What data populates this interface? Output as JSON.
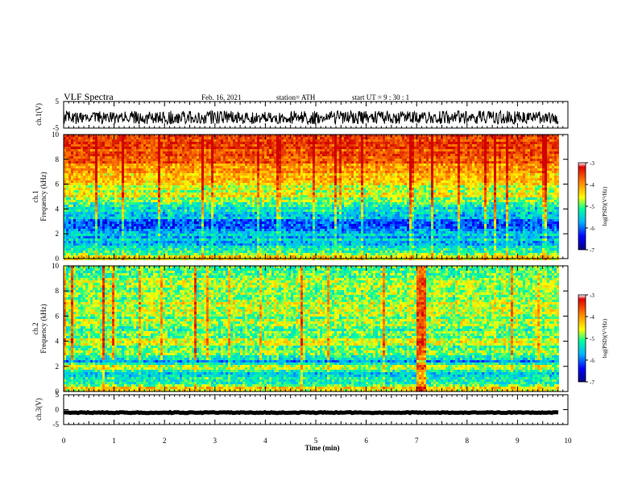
{
  "header": {
    "title": "VLF Spectra",
    "date": "Feb. 16, 2021",
    "station": "station= ATH",
    "start": "start  UT =   9 : 30 : 1"
  },
  "chart_data": [
    {
      "type": "line",
      "panel": "ch1_waveform",
      "ylabel": "ch.1(V)",
      "ylim": [
        -5,
        5
      ],
      "yticks": [
        "5",
        "-5"
      ],
      "description_values": {
        "baseline_mean": -1.0,
        "min": -3.5,
        "max": 3.5
      }
    },
    {
      "type": "heatmap",
      "panel": "ch1_spectrogram",
      "ylabel_lines": [
        "ch.1",
        "Frequency (kHz)"
      ],
      "ylim": [
        0,
        10
      ],
      "yticks": [
        "0",
        "2",
        "4",
        "6",
        "8",
        "10"
      ],
      "xlim": [
        0,
        10
      ],
      "profile_freq_khz": [
        0,
        0.5,
        1,
        1.5,
        2,
        2.5,
        3,
        3.5,
        4,
        4.5,
        5,
        6,
        7,
        8,
        9,
        10
      ],
      "profile_logpsd": [
        -4.2,
        -4.8,
        -5.5,
        -5.6,
        -5.7,
        -6.1,
        -6.0,
        -5.6,
        -5.3,
        -5.0,
        -4.7,
        -4.5,
        -4.1,
        -3.7,
        -3.5,
        -3.4
      ],
      "colorbar": {
        "label": "log(PSD)(V²/Hz)",
        "ticks": [
          "-3",
          "-4",
          "-5",
          "-6",
          "-7"
        ],
        "range": [
          -7,
          -3
        ]
      }
    },
    {
      "type": "heatmap",
      "panel": "ch2_spectrogram",
      "ylabel_lines": [
        "ch.2",
        "Frequency (kHz)"
      ],
      "ylim": [
        0,
        10
      ],
      "yticks": [
        "0",
        "2",
        "4",
        "6",
        "8",
        "10"
      ],
      "xlim": [
        0,
        10
      ],
      "profile_freq_khz": [
        0,
        0.5,
        1,
        1.5,
        2,
        2.5,
        3,
        4,
        5,
        6,
        7,
        8,
        9,
        10
      ],
      "profile_logpsd": [
        -4.3,
        -4.6,
        -5.4,
        -5.5,
        -4.6,
        -5.9,
        -5.0,
        -4.8,
        -4.9,
        -4.8,
        -4.8,
        -4.9,
        -4.9,
        -5.0
      ],
      "colorbar": {
        "label": "log(PSD)(V²/Hz)",
        "ticks": [
          "-3",
          "-4",
          "-5",
          "-6",
          "-7"
        ],
        "range": [
          -7,
          -3
        ]
      }
    },
    {
      "type": "line",
      "panel": "ch3_waveform",
      "ylabel": "ch.3(V)",
      "ylim": [
        -5,
        5
      ],
      "yticks": [
        "5",
        "0",
        "-5"
      ],
      "description_values": {
        "baseline_mean": -1.0
      }
    }
  ],
  "xaxis": {
    "label": "Time (min)",
    "range": [
      0,
      10
    ],
    "ticks": [
      "0",
      "1",
      "2",
      "3",
      "4",
      "5",
      "6",
      "7",
      "8",
      "9",
      "10"
    ]
  },
  "colors": {
    "axis": "#000000",
    "colormap": [
      "#0000a0",
      "#0050ff",
      "#00d8ff",
      "#00ff80",
      "#e8ff00",
      "#ff8000",
      "#d00000"
    ]
  }
}
